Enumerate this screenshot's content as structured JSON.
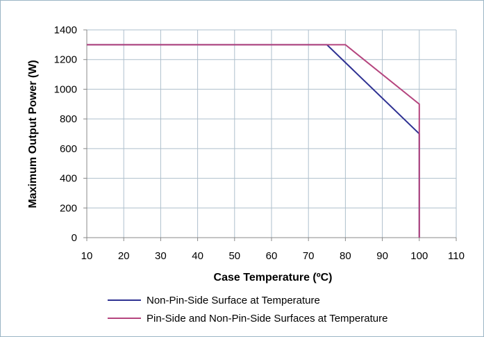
{
  "chart_data": {
    "type": "line",
    "title": "",
    "xlabel": "Case Temperature (ºC)",
    "ylabel": "Maximum Output Power (W)",
    "xlim": [
      10,
      110
    ],
    "ylim": [
      0,
      1400
    ],
    "xticks": [
      10,
      20,
      30,
      40,
      50,
      60,
      70,
      80,
      90,
      100,
      110
    ],
    "yticks": [
      0,
      200,
      400,
      600,
      800,
      1000,
      1200,
      1400
    ],
    "grid": true,
    "legend_position": "bottom",
    "series": [
      {
        "name": "Non-Pin-Side Surface at Temperature",
        "color": "#2e3192",
        "x": [
          10,
          75,
          100,
          100
        ],
        "y": [
          1300,
          1300,
          700,
          0
        ]
      },
      {
        "name": "Pin-Side and Non-Pin-Side Surfaces at Temperature",
        "color": "#b5457e",
        "x": [
          10,
          80,
          100,
          100
        ],
        "y": [
          1300,
          1300,
          900,
          0
        ]
      }
    ],
    "colors": {
      "frame": "#9bb4c4",
      "grid": "#aebfcc",
      "axis": "#888888"
    }
  }
}
